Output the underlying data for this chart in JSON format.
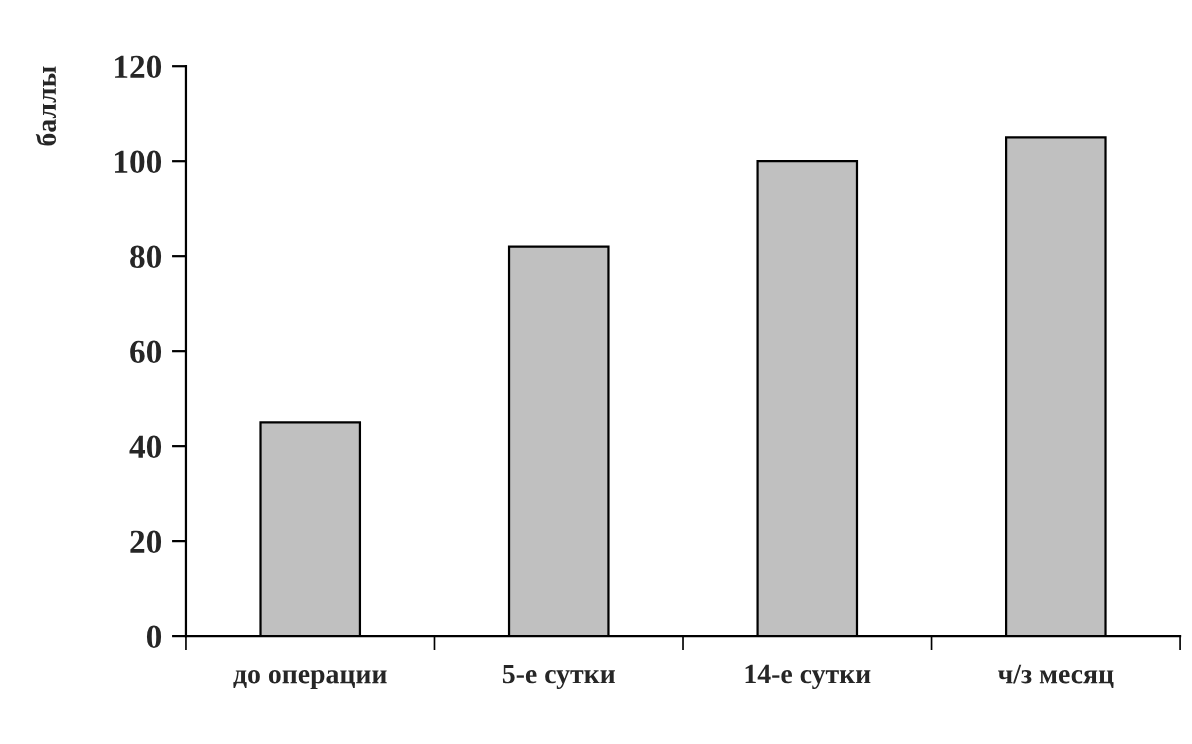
{
  "chart_data": {
    "type": "bar",
    "ylabel": "баллы",
    "categories": [
      "до операции",
      "5-е сутки",
      "14-е сутки",
      "ч/з месяц"
    ],
    "values": [
      45,
      82,
      100,
      105
    ],
    "color": "#c0c0c0",
    "ylim": [
      0,
      120
    ],
    "yticks": [
      0,
      20,
      40,
      60,
      80,
      100,
      120
    ],
    "grid": false,
    "legend": false
  }
}
